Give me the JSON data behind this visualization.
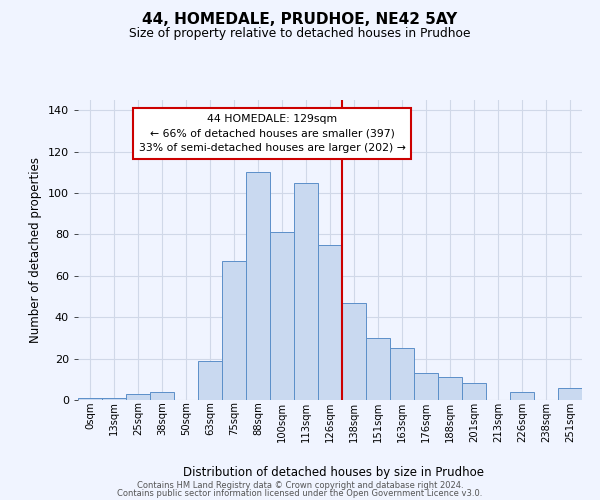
{
  "title": "44, HOMEDALE, PRUDHOE, NE42 5AY",
  "subtitle": "Size of property relative to detached houses in Prudhoe",
  "xlabel": "Distribution of detached houses by size in Prudhoe",
  "ylabel": "Number of detached properties",
  "tick_labels": [
    "0sqm",
    "13sqm",
    "25sqm",
    "38sqm",
    "50sqm",
    "63sqm",
    "75sqm",
    "88sqm",
    "100sqm",
    "113sqm",
    "126sqm",
    "138sqm",
    "151sqm",
    "163sqm",
    "176sqm",
    "188sqm",
    "201sqm",
    "213sqm",
    "226sqm",
    "238sqm",
    "251sqm"
  ],
  "bar_values": [
    1,
    1,
    3,
    4,
    0,
    19,
    67,
    110,
    81,
    105,
    75,
    47,
    30,
    25,
    13,
    11,
    8,
    0,
    4,
    0,
    6
  ],
  "bar_color": "#c9d9f0",
  "bar_edge_color": "#5b8fc9",
  "vline_x": 10.5,
  "vline_color": "#cc0000",
  "annotation_title": "44 HOMEDALE: 129sqm",
  "annotation_line1": "← 66% of detached houses are smaller (397)",
  "annotation_line2": "33% of semi-detached houses are larger (202) →",
  "annotation_box_color": "#ffffff",
  "annotation_box_edge": "#cc0000",
  "footer_line1": "Contains HM Land Registry data © Crown copyright and database right 2024.",
  "footer_line2": "Contains public sector information licensed under the Open Government Licence v3.0.",
  "ylim": [
    0,
    145
  ],
  "yticks": [
    0,
    20,
    40,
    60,
    80,
    100,
    120,
    140
  ],
  "bg_color": "#f0f4ff",
  "grid_color": "#d0d8e8"
}
